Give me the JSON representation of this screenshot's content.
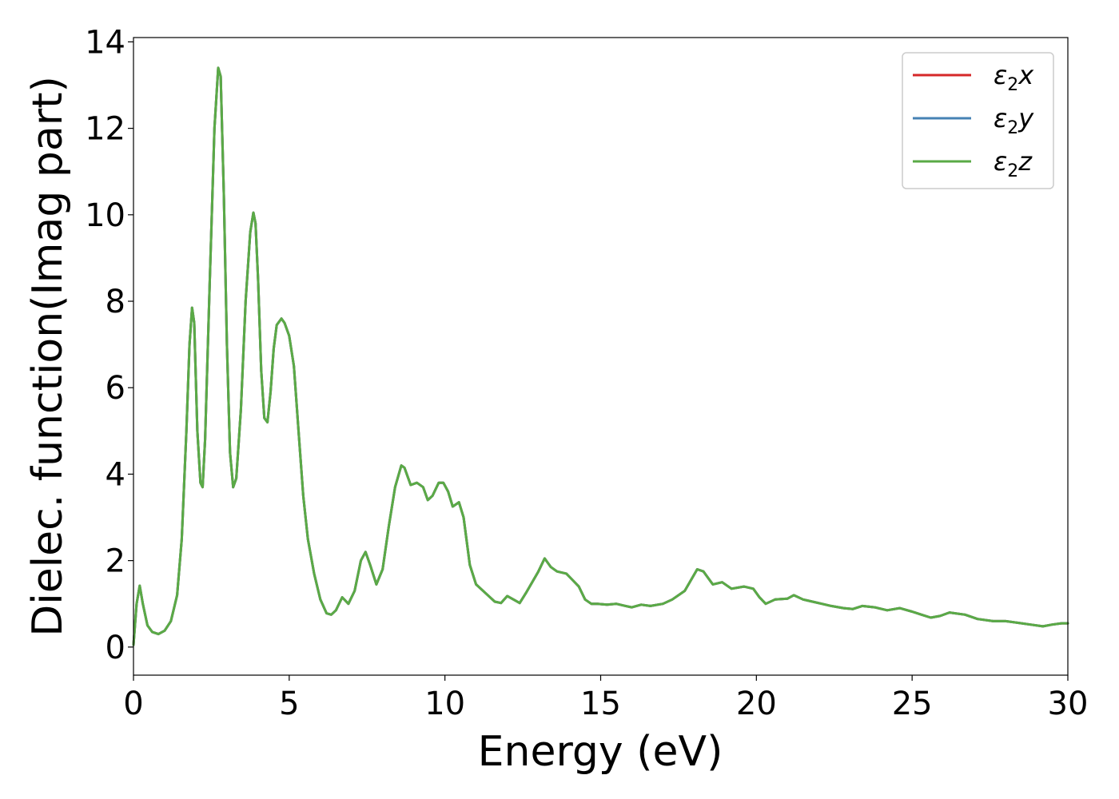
{
  "chart_data": {
    "type": "line",
    "title": "",
    "xlabel": "Energy (eV)",
    "ylabel": "Dielec. function(Imag part)",
    "xlim": [
      0,
      30
    ],
    "ylim": [
      -0.65,
      14.1
    ],
    "xticks": [
      0,
      5,
      10,
      15,
      20,
      25,
      30
    ],
    "yticks": [
      0,
      2,
      4,
      6,
      8,
      10,
      12,
      14
    ],
    "xtick_labels": [
      "0",
      "5",
      "10",
      "15",
      "20",
      "25",
      "30"
    ],
    "ytick_labels": [
      "0",
      "2",
      "4",
      "6",
      "8",
      "10",
      "12",
      "14"
    ],
    "grid": false,
    "legend_position": "top-right",
    "series": [
      {
        "name": "ε2x",
        "label_base": "ε",
        "label_sub": "2",
        "label_tail": "x",
        "color": "#d62728"
      },
      {
        "name": "ε2y",
        "label_base": "ε",
        "label_sub": "2",
        "label_tail": "y",
        "color": "#4682b4"
      },
      {
        "name": "ε2z",
        "label_base": "ε",
        "label_sub": "2",
        "label_tail": "z",
        "color": "#5aaa46"
      }
    ],
    "x": [
      0,
      0.1,
      0.2,
      0.3,
      0.45,
      0.6,
      0.8,
      1.0,
      1.2,
      1.4,
      1.55,
      1.7,
      1.8,
      1.88,
      1.95,
      2.05,
      2.15,
      2.22,
      2.3,
      2.45,
      2.6,
      2.72,
      2.8,
      2.9,
      3.0,
      3.1,
      3.2,
      3.3,
      3.45,
      3.6,
      3.75,
      3.85,
      3.92,
      4.0,
      4.1,
      4.2,
      4.3,
      4.4,
      4.5,
      4.6,
      4.75,
      4.85,
      5.0,
      5.15,
      5.3,
      5.45,
      5.6,
      5.8,
      6.0,
      6.2,
      6.35,
      6.5,
      6.7,
      6.9,
      7.1,
      7.3,
      7.45,
      7.6,
      7.8,
      8.0,
      8.2,
      8.4,
      8.6,
      8.7,
      8.9,
      9.1,
      9.3,
      9.45,
      9.6,
      9.8,
      9.95,
      10.1,
      10.25,
      10.45,
      10.6,
      10.8,
      11.0,
      11.3,
      11.6,
      11.8,
      12.0,
      12.2,
      12.4,
      12.6,
      12.8,
      13.0,
      13.2,
      13.4,
      13.6,
      13.9,
      14.1,
      14.3,
      14.5,
      14.7,
      14.9,
      15.2,
      15.5,
      15.8,
      16.0,
      16.3,
      16.6,
      17.0,
      17.3,
      17.7,
      17.9,
      18.1,
      18.3,
      18.6,
      18.9,
      19.2,
      19.6,
      19.9,
      20.1,
      20.3,
      20.6,
      21.0,
      21.2,
      21.5,
      21.8,
      22.1,
      22.4,
      22.8,
      23.1,
      23.4,
      23.8,
      24.2,
      24.6,
      25.0,
      25.3,
      25.6,
      25.9,
      26.2,
      26.7,
      27.1,
      27.6,
      28.0,
      28.4,
      28.8,
      29.2,
      29.5,
      29.8,
      30.0
    ],
    "y": [
      0.05,
      1.0,
      1.42,
      1.0,
      0.5,
      0.35,
      0.3,
      0.38,
      0.6,
      1.2,
      2.5,
      5.0,
      7.0,
      7.85,
      7.5,
      5.0,
      3.8,
      3.7,
      4.8,
      8.5,
      12.0,
      13.4,
      13.2,
      10.5,
      7.0,
      4.5,
      3.7,
      3.9,
      5.5,
      8.0,
      9.6,
      10.05,
      9.8,
      8.5,
      6.4,
      5.3,
      5.2,
      5.9,
      6.9,
      7.45,
      7.6,
      7.5,
      7.2,
      6.5,
      5.0,
      3.5,
      2.5,
      1.7,
      1.1,
      0.78,
      0.75,
      0.85,
      1.15,
      1.0,
      1.3,
      2.0,
      2.2,
      1.9,
      1.45,
      1.8,
      2.8,
      3.7,
      4.2,
      4.15,
      3.75,
      3.8,
      3.7,
      3.4,
      3.5,
      3.8,
      3.8,
      3.6,
      3.25,
      3.35,
      3.0,
      1.9,
      1.45,
      1.25,
      1.05,
      1.02,
      1.18,
      1.1,
      1.02,
      1.25,
      1.5,
      1.75,
      2.05,
      1.85,
      1.75,
      1.7,
      1.55,
      1.4,
      1.1,
      1.0,
      1.0,
      0.98,
      1.0,
      0.95,
      0.92,
      0.98,
      0.95,
      1.0,
      1.1,
      1.3,
      1.55,
      1.8,
      1.75,
      1.45,
      1.5,
      1.35,
      1.4,
      1.35,
      1.15,
      1.0,
      1.1,
      1.12,
      1.2,
      1.1,
      1.05,
      1.0,
      0.95,
      0.9,
      0.88,
      0.95,
      0.92,
      0.85,
      0.9,
      0.82,
      0.75,
      0.68,
      0.72,
      0.8,
      0.75,
      0.65,
      0.6,
      0.6,
      0.56,
      0.52,
      0.48,
      0.52,
      0.55,
      0.55
    ]
  }
}
